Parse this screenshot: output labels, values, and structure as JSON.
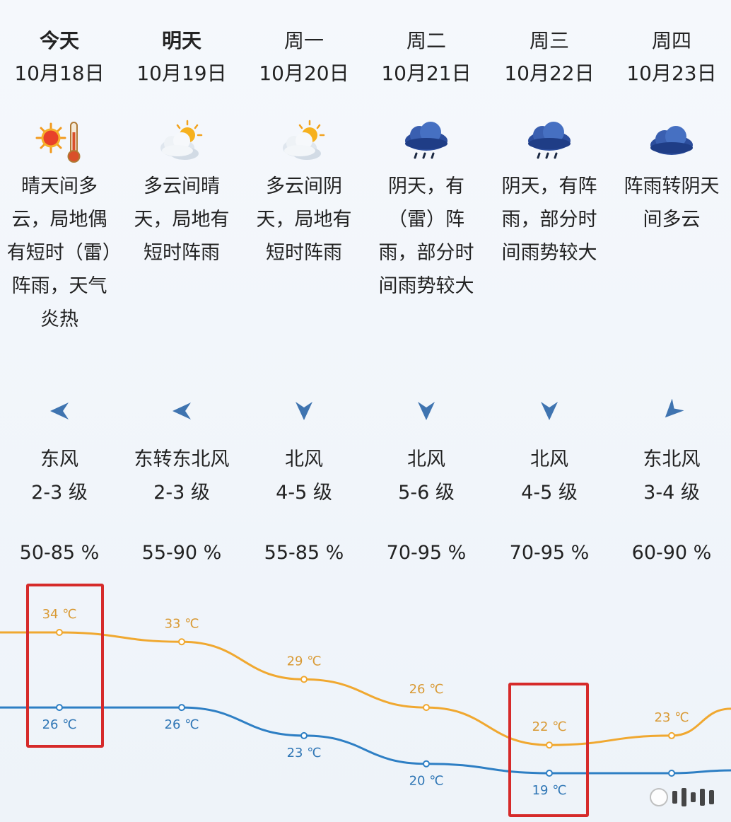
{
  "days": [
    {
      "name": "今天",
      "date": "10月18日",
      "bold": true,
      "icon": "sunny-hot-icon",
      "desc": "晴天间多云，局地偶有短时（雷）阵雨，天气炎热",
      "wind_arrow": "wind-east-icon",
      "wind_dir": "东风",
      "wind_level": "2-3 级",
      "humidity": "50-85 %"
    },
    {
      "name": "明天",
      "date": "10月19日",
      "bold": true,
      "icon": "partly-cloudy-icon",
      "desc": "多云间晴天，局地有短时阵雨",
      "wind_arrow": "wind-east-icon",
      "wind_dir": "东转东北风",
      "wind_level": "2-3 级",
      "humidity": "55-90 %"
    },
    {
      "name": "周一",
      "date": "10月20日",
      "bold": false,
      "icon": "partly-cloudy-icon",
      "desc": "多云间阴天，局地有短时阵雨",
      "wind_arrow": "wind-north-icon",
      "wind_dir": "北风",
      "wind_level": "4-5 级",
      "humidity": "55-85 %"
    },
    {
      "name": "周二",
      "date": "10月21日",
      "bold": false,
      "icon": "rain-cloud-icon",
      "desc": "阴天，有（雷）阵雨，部分时间雨势较大",
      "wind_arrow": "wind-north-icon",
      "wind_dir": "北风",
      "wind_level": "5-6 级",
      "humidity": "70-95 %"
    },
    {
      "name": "周三",
      "date": "10月22日",
      "bold": false,
      "icon": "rain-cloud-icon",
      "desc": "阴天，有阵雨，部分时间雨势较大",
      "wind_arrow": "wind-north-icon",
      "wind_dir": "北风",
      "wind_level": "4-5 级",
      "humidity": "70-95 %"
    },
    {
      "name": "周四",
      "date": "10月23日",
      "bold": false,
      "icon": "cloudy-icon",
      "desc": "阵雨转阴天间多云",
      "wind_arrow": "wind-northeast-icon",
      "wind_dir": "东北风",
      "wind_level": "3-4 级",
      "humidity": "60-90 %"
    }
  ],
  "colors": {
    "high_line": "#f0a830",
    "low_line": "#2e7fc4",
    "high_label": "#d99a35",
    "low_label": "#2f76b5",
    "highlight": "#d62a2a",
    "arrow": "#3f74b0"
  },
  "chart_data": {
    "type": "line",
    "categories": [
      "10月18日",
      "10月19日",
      "10月20日",
      "10月21日",
      "10月22日",
      "10月23日"
    ],
    "series": [
      {
        "values": [
          34,
          33,
          29,
          26,
          22,
          23
        ],
        "labels": [
          "34 ℃",
          "33 ℃",
          "29 ℃",
          "26 ℃",
          "22 ℃",
          "23 ℃"
        ]
      },
      {
        "values": [
          26,
          26,
          23,
          20,
          19,
          19
        ],
        "labels": [
          "26 ℃",
          "26 ℃",
          "23 ℃",
          "20 ℃",
          "19 ℃",
          ""
        ]
      }
    ],
    "highlighted_categories": [
      "10月18日",
      "10月22日"
    ]
  }
}
